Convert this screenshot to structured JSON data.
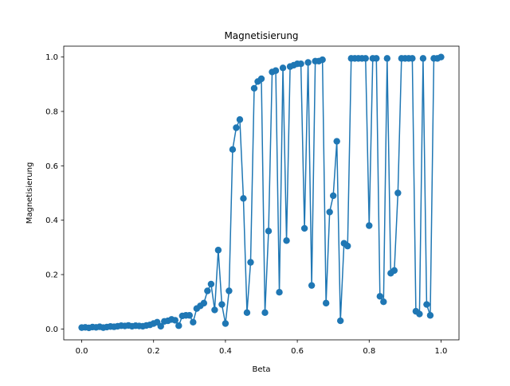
{
  "chart_data": {
    "type": "line",
    "title": "Magnetisierung",
    "xlabel": "Beta",
    "ylabel": "Magnetisierung",
    "xlim": [
      -0.05,
      1.05
    ],
    "ylim": [
      -0.04,
      1.04
    ],
    "xticks": [
      0.0,
      0.2,
      0.4,
      0.6,
      0.8,
      1.0
    ],
    "xtick_labels": [
      "0.0",
      "0.2",
      "0.4",
      "0.6",
      "0.8",
      "1.0"
    ],
    "yticks": [
      0.0,
      0.2,
      0.4,
      0.6,
      0.8,
      1.0
    ],
    "ytick_labels": [
      "0.0",
      "0.2",
      "0.4",
      "0.6",
      "0.8",
      "1.0"
    ],
    "grid": false,
    "color": "#1f77b4",
    "marker": "circle",
    "series": [
      {
        "x": [
          0.0,
          0.01,
          0.02,
          0.03,
          0.04,
          0.05,
          0.06,
          0.07,
          0.08,
          0.09,
          0.1,
          0.11,
          0.12,
          0.13,
          0.14,
          0.15,
          0.16,
          0.17,
          0.18,
          0.19,
          0.2,
          0.21,
          0.22,
          0.23,
          0.24,
          0.25,
          0.26,
          0.27,
          0.28,
          0.29,
          0.3,
          0.31,
          0.32,
          0.33,
          0.34,
          0.35,
          0.36,
          0.37,
          0.38,
          0.39,
          0.4,
          0.41,
          0.42,
          0.43,
          0.44,
          0.45,
          0.46,
          0.47,
          0.48,
          0.49,
          0.5,
          0.51,
          0.52,
          0.53,
          0.54,
          0.55,
          0.56,
          0.57,
          0.58,
          0.59,
          0.6,
          0.61,
          0.62,
          0.63,
          0.64,
          0.65,
          0.66,
          0.67,
          0.68,
          0.69,
          0.7,
          0.71,
          0.72,
          0.73,
          0.74,
          0.75,
          0.76,
          0.77,
          0.78,
          0.79,
          0.8,
          0.81,
          0.82,
          0.83,
          0.84,
          0.85,
          0.86,
          0.87,
          0.88,
          0.89,
          0.9,
          0.91,
          0.92,
          0.93,
          0.94,
          0.95,
          0.96,
          0.97,
          0.98,
          0.99,
          1.0
        ],
        "y": [
          0.005,
          0.006,
          0.004,
          0.007,
          0.006,
          0.008,
          0.005,
          0.007,
          0.009,
          0.008,
          0.01,
          0.012,
          0.011,
          0.013,
          0.01,
          0.012,
          0.011,
          0.01,
          0.013,
          0.015,
          0.02,
          0.025,
          0.01,
          0.028,
          0.03,
          0.035,
          0.032,
          0.012,
          0.048,
          0.05,
          0.05,
          0.025,
          0.075,
          0.085,
          0.095,
          0.14,
          0.165,
          0.07,
          0.29,
          0.09,
          0.02,
          0.14,
          0.66,
          0.74,
          0.77,
          0.48,
          0.06,
          0.245,
          0.885,
          0.91,
          0.92,
          0.06,
          0.36,
          0.945,
          0.95,
          0.135,
          0.96,
          0.325,
          0.965,
          0.97,
          0.975,
          0.975,
          0.37,
          0.98,
          0.16,
          0.985,
          0.985,
          0.99,
          0.095,
          0.43,
          0.49,
          0.69,
          0.03,
          0.315,
          0.305,
          0.995,
          0.995,
          0.995,
          0.995,
          0.995,
          0.38,
          0.995,
          0.995,
          0.12,
          0.1,
          0.995,
          0.205,
          0.215,
          0.5,
          0.995,
          0.995,
          0.995,
          0.995,
          0.065,
          0.055,
          0.995,
          0.09,
          0.05,
          0.995,
          0.995,
          1.0
        ]
      }
    ]
  }
}
